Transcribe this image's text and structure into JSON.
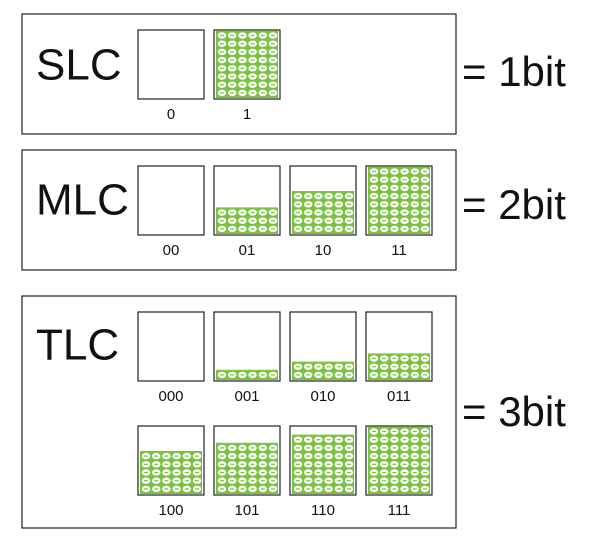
{
  "panels": [
    {
      "label": "SLC",
      "cells": [
        "0",
        "1"
      ],
      "bits": "= 1bit"
    },
    {
      "label": "MLC",
      "cells": [
        "00",
        "01",
        "10",
        "11"
      ],
      "bits": "= 2bit"
    },
    {
      "label": "TLC",
      "cells": [
        "000",
        "001",
        "010",
        "011",
        "100",
        "101",
        "110",
        "111"
      ],
      "bits": "= 3bit"
    }
  ]
}
